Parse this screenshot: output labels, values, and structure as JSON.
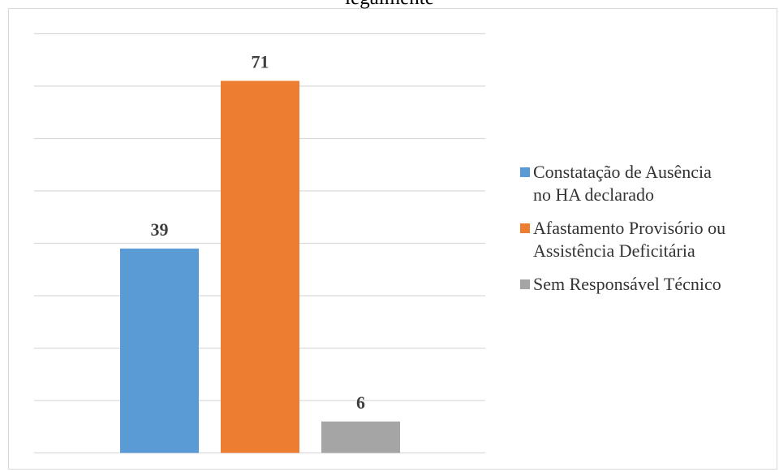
{
  "chart_data": {
    "type": "bar",
    "title": "",
    "title_partial": "legalmente",
    "categories": [
      "Constatação de Ausência no HA declarado",
      "Afastamento Provisório ou Assistência Deficitária",
      "Sem Responsável Técnico"
    ],
    "values": [
      39,
      71,
      6
    ],
    "colors": [
      "#5b9bd5",
      "#ed7d31",
      "#a5a5a5"
    ],
    "ylim": [
      0,
      80
    ],
    "gridlines": [
      0,
      10,
      20,
      30,
      40,
      50,
      60,
      70,
      80
    ],
    "grid": true,
    "legend_position": "right",
    "xlabel": "",
    "ylabel": ""
  },
  "legend": [
    {
      "lines": [
        "Constatação de Ausência",
        "no HA declarado"
      ],
      "color": "#5b9bd5"
    },
    {
      "lines": [
        "Afastamento Provisório ou",
        "Assistência Deficitária"
      ],
      "color": "#ed7d31"
    },
    {
      "lines": [
        "Sem Responsável Técnico"
      ],
      "color": "#a5a5a5"
    }
  ]
}
